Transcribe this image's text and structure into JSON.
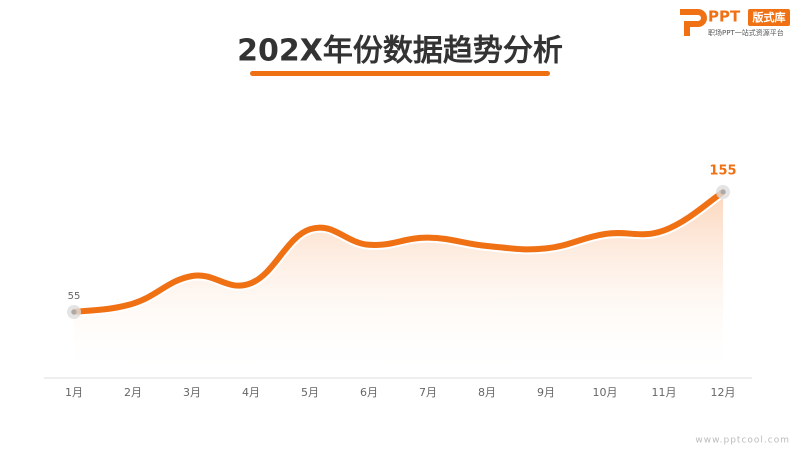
{
  "header": {
    "brand": "PPT",
    "tag": "版式库",
    "slogan": "职场PPT一站式资源平台"
  },
  "chart_data": {
    "type": "line",
    "title": "202X年份数据趋势分析",
    "categories": [
      "1月",
      "2月",
      "3月",
      "4月",
      "5月",
      "6月",
      "7月",
      "8月",
      "9月",
      "10月",
      "11月",
      "12月"
    ],
    "values": [
      55,
      62,
      85,
      79,
      124,
      111,
      117,
      110,
      108,
      120,
      123,
      155
    ],
    "color": "#f07014"
  },
  "footer": {
    "watermark": "www.pptcool.com"
  }
}
